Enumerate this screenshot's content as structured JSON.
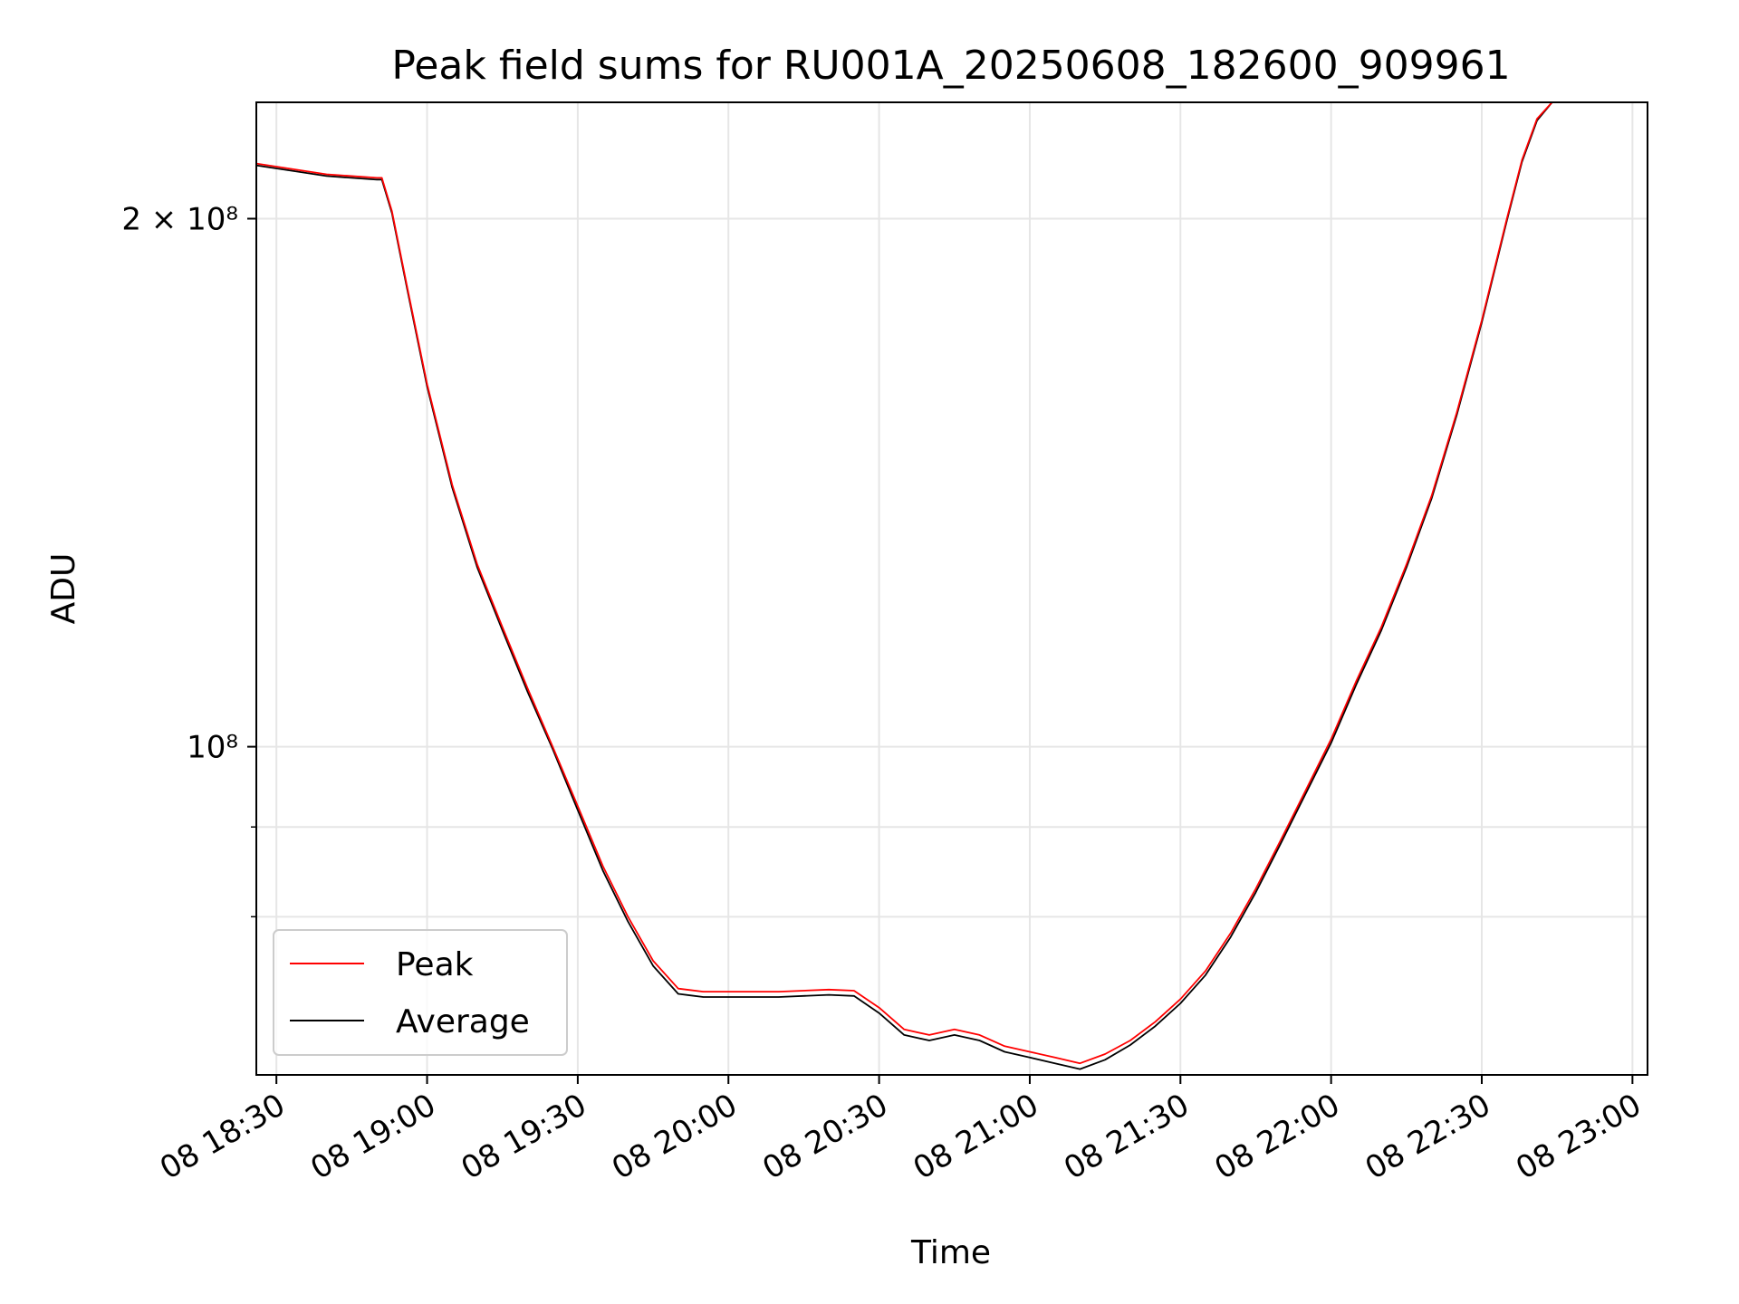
{
  "chart_data": {
    "type": "line",
    "title": "Peak field sums for RU001A_20250608_182600_909961",
    "xlabel": "Time",
    "ylabel": "ADU",
    "yscale": "log",
    "ylim": [
      65000000,
      233000000
    ],
    "xlim": [
      "2025-06-08 18:26",
      "2025-06-08 23:03"
    ],
    "x_ticks": [
      {
        "t": "2025-06-08 18:30",
        "label": "08 18:30"
      },
      {
        "t": "2025-06-08 19:00",
        "label": "08 19:00"
      },
      {
        "t": "2025-06-08 19:30",
        "label": "08 19:30"
      },
      {
        "t": "2025-06-08 20:00",
        "label": "08 20:00"
      },
      {
        "t": "2025-06-08 20:30",
        "label": "08 20:30"
      },
      {
        "t": "2025-06-08 21:00",
        "label": "08 21:00"
      },
      {
        "t": "2025-06-08 21:30",
        "label": "08 21:30"
      },
      {
        "t": "2025-06-08 22:00",
        "label": "08 22:00"
      },
      {
        "t": "2025-06-08 22:30",
        "label": "08 22:30"
      },
      {
        "t": "2025-06-08 23:00",
        "label": "08 23:00"
      }
    ],
    "y_ticks": [
      {
        "value": 100000000,
        "label": "10⁸"
      },
      {
        "value": 200000000,
        "label": "2 × 10⁸"
      }
    ],
    "y_minor_ticks": [
      80000000,
      90000000
    ],
    "grid": true,
    "legend_position": "lower-left",
    "colors": {
      "peak": "#ff0000",
      "average": "#000000"
    },
    "series": [
      {
        "name": "Peak",
        "color": "#ff0000",
        "x": [
          "2025-06-08 18:26",
          "2025-06-08 18:40",
          "2025-06-08 18:50",
          "2025-06-08 18:51",
          "2025-06-08 18:53",
          "2025-06-08 18:56",
          "2025-06-08 19:00",
          "2025-06-08 19:05",
          "2025-06-08 19:10",
          "2025-06-08 19:15",
          "2025-06-08 19:20",
          "2025-06-08 19:25",
          "2025-06-08 19:30",
          "2025-06-08 19:35",
          "2025-06-08 19:40",
          "2025-06-08 19:45",
          "2025-06-08 19:50",
          "2025-06-08 19:55",
          "2025-06-08 20:00",
          "2025-06-08 20:10",
          "2025-06-08 20:20",
          "2025-06-08 20:25",
          "2025-06-08 20:30",
          "2025-06-08 20:35",
          "2025-06-08 20:40",
          "2025-06-08 20:45",
          "2025-06-08 20:50",
          "2025-06-08 20:55",
          "2025-06-08 21:00",
          "2025-06-08 21:05",
          "2025-06-08 21:10",
          "2025-06-08 21:15",
          "2025-06-08 21:20",
          "2025-06-08 21:25",
          "2025-06-08 21:30",
          "2025-06-08 21:35",
          "2025-06-08 21:40",
          "2025-06-08 21:45",
          "2025-06-08 21:50",
          "2025-06-08 21:55",
          "2025-06-08 22:00",
          "2025-06-08 22:05",
          "2025-06-08 22:10",
          "2025-06-08 22:15",
          "2025-06-08 22:20",
          "2025-06-08 22:25",
          "2025-06-08 22:30",
          "2025-06-08 22:35",
          "2025-06-08 22:38",
          "2025-06-08 22:41",
          "2025-06-08 22:44",
          "2025-06-08 22:46"
        ],
        "y": [
          215000000,
          212000000,
          211000000,
          211000000,
          202000000,
          183000000,
          161000000,
          141000000,
          127000000,
          117000000,
          108000000,
          100000000,
          92500000,
          85500000,
          80000000,
          75500000,
          72800000,
          72500000,
          72500000,
          72500000,
          72700000,
          72600000,
          71000000,
          69000000,
          68500000,
          69000000,
          68500000,
          67500000,
          67000000,
          66500000,
          66000000,
          66800000,
          68000000,
          69700000,
          71800000,
          74500000,
          78300000,
          83000000,
          88500000,
          94500000,
          101000000,
          109000000,
          117000000,
          127000000,
          139000000,
          155000000,
          175000000,
          200000000,
          216000000,
          228000000,
          233000000,
          233000000
        ]
      },
      {
        "name": "Average",
        "color": "#000000",
        "x": [
          "2025-06-08 18:26",
          "2025-06-08 18:40",
          "2025-06-08 18:50",
          "2025-06-08 18:51",
          "2025-06-08 18:53",
          "2025-06-08 18:56",
          "2025-06-08 19:00",
          "2025-06-08 19:05",
          "2025-06-08 19:10",
          "2025-06-08 19:15",
          "2025-06-08 19:20",
          "2025-06-08 19:25",
          "2025-06-08 19:30",
          "2025-06-08 19:35",
          "2025-06-08 19:40",
          "2025-06-08 19:45",
          "2025-06-08 19:50",
          "2025-06-08 19:55",
          "2025-06-08 20:00",
          "2025-06-08 20:10",
          "2025-06-08 20:20",
          "2025-06-08 20:25",
          "2025-06-08 20:30",
          "2025-06-08 20:35",
          "2025-06-08 20:40",
          "2025-06-08 20:45",
          "2025-06-08 20:50",
          "2025-06-08 20:55",
          "2025-06-08 21:00",
          "2025-06-08 21:05",
          "2025-06-08 21:10",
          "2025-06-08 21:15",
          "2025-06-08 21:20",
          "2025-06-08 21:25",
          "2025-06-08 21:30",
          "2025-06-08 21:35",
          "2025-06-08 21:40",
          "2025-06-08 21:45",
          "2025-06-08 21:50",
          "2025-06-08 21:55",
          "2025-06-08 22:00",
          "2025-06-08 22:05",
          "2025-06-08 22:10",
          "2025-06-08 22:15",
          "2025-06-08 22:20",
          "2025-06-08 22:25",
          "2025-06-08 22:30",
          "2025-06-08 22:35",
          "2025-06-08 22:38",
          "2025-06-08 22:41",
          "2025-06-08 22:44",
          "2025-06-08 22:46"
        ],
        "y": [
          214500000,
          211500000,
          210500000,
          210500000,
          201500000,
          182500000,
          160500000,
          140500000,
          126500000,
          116500000,
          107500000,
          99700000,
          92000000,
          85000000,
          79500000,
          75000000,
          72300000,
          72000000,
          72000000,
          72000000,
          72200000,
          72100000,
          70500000,
          68500000,
          68000000,
          68500000,
          68000000,
          67000000,
          66500000,
          66000000,
          65500000,
          66300000,
          67600000,
          69300000,
          71400000,
          74100000,
          77900000,
          82600000,
          88100000,
          94100000,
          100500000,
          108500000,
          116500000,
          126500000,
          138500000,
          154500000,
          174500000,
          199500000,
          215500000,
          227500000,
          233000000,
          233000000
        ]
      }
    ]
  }
}
